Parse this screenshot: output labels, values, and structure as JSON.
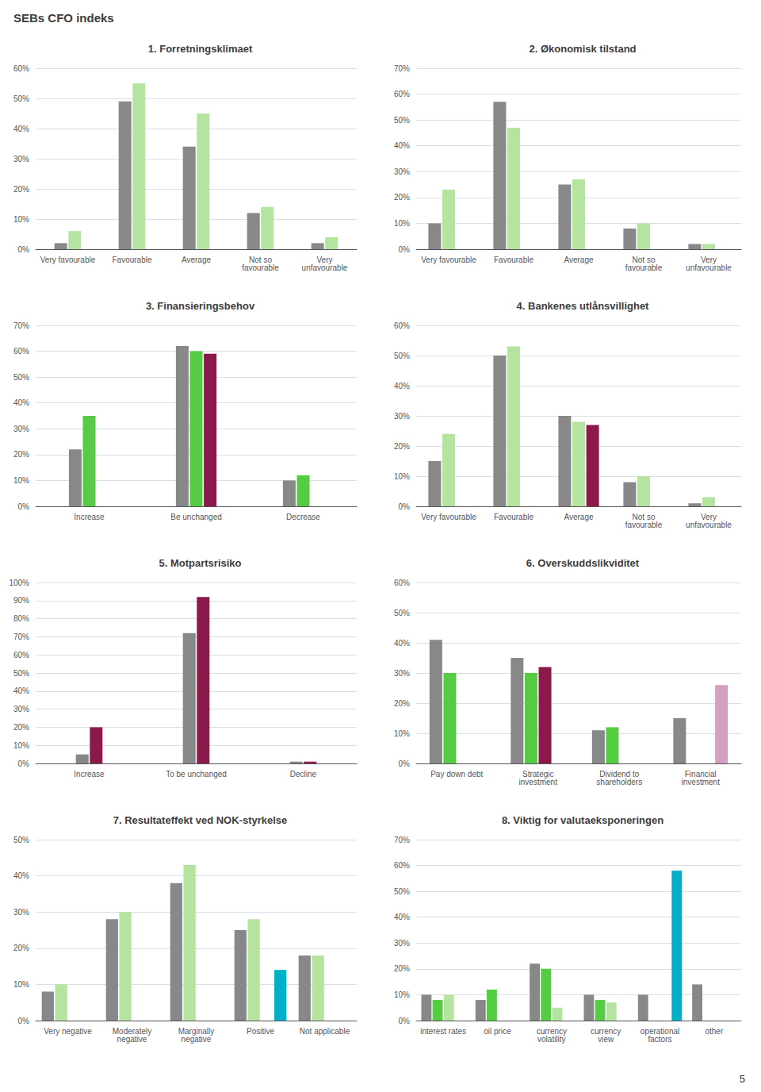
{
  "title": "SEBs CFO indeks",
  "annotations": [
    "5"
  ],
  "chart_data": [
    {
      "type": "bar",
      "title": "1. Forretningsklimaet",
      "categories": [
        "Very favourable",
        "Favourable",
        "Average",
        "Not so\nfavourable",
        "Very\nunfavourable"
      ],
      "series": [
        {
          "color": "#888888",
          "values": [
            2,
            49,
            34,
            12,
            2
          ]
        },
        {
          "color": "#b5e4a0",
          "values": [
            6,
            55,
            45,
            14,
            4
          ]
        }
      ],
      "ylim": [
        0,
        60
      ],
      "yticks": [
        {
          "value": 0,
          "label": "0%"
        },
        {
          "value": 10,
          "label": "10%"
        },
        {
          "value": 20,
          "label": "20%"
        },
        {
          "value": 30,
          "label": "30%"
        },
        {
          "value": 40,
          "label": "40%"
        },
        {
          "value": 50,
          "label": "50%"
        },
        {
          "value": 60,
          "label": "60%"
        }
      ],
      "grid": true
    },
    {
      "type": "bar",
      "title": "2. Økonomisk tilstand",
      "categories": [
        "Very favourable",
        "Favourable",
        "Average",
        "Not so\nfavourable",
        "Very\nunfavourable"
      ],
      "series": [
        {
          "color": "#888888",
          "values": [
            10,
            57,
            25,
            8,
            2
          ]
        },
        {
          "color": "#b5e4a0",
          "values": [
            23,
            47,
            27,
            10,
            2
          ]
        },
        {
          "color": "#8b1a4a",
          "values": [
            0,
            0,
            0,
            0,
            0
          ]
        }
      ],
      "ylim": [
        0,
        70
      ],
      "yticks": [
        {
          "value": 0,
          "label": "0%"
        },
        {
          "value": 10,
          "label": "10%"
        },
        {
          "value": 20,
          "label": "20%"
        },
        {
          "value": 30,
          "label": "30%"
        },
        {
          "value": 40,
          "label": "40%"
        },
        {
          "value": 50,
          "label": "50%"
        },
        {
          "value": 60,
          "label": "60%"
        },
        {
          "value": 70,
          "label": "70%"
        }
      ],
      "grid": true
    },
    {
      "type": "bar",
      "title": "3. Finansieringsbehov",
      "categories": [
        "Increase",
        "Be unchanged",
        "Decrease"
      ],
      "series": [
        {
          "color": "#888888",
          "values": [
            22,
            62,
            10
          ]
        },
        {
          "color": "#55cc44",
          "values": [
            35,
            60,
            12
          ]
        },
        {
          "color": "#8b1a4a",
          "values": [
            0,
            59,
            0
          ]
        }
      ],
      "ylim": [
        0,
        70
      ],
      "yticks": [
        {
          "value": 0,
          "label": "0%"
        },
        {
          "value": 10,
          "label": "10%"
        },
        {
          "value": 20,
          "label": "20%"
        },
        {
          "value": 30,
          "label": "30%"
        },
        {
          "value": 40,
          "label": "40%"
        },
        {
          "value": 50,
          "label": "50%"
        },
        {
          "value": 60,
          "label": "60%"
        },
        {
          "value": 70,
          "label": "70%"
        }
      ],
      "grid": true
    },
    {
      "type": "bar",
      "title": "4. Bankenes utlånsvillighet",
      "categories": [
        "Very favourable",
        "Favourable",
        "Average",
        "Not so\nfavourable",
        "Very\nunfavourable"
      ],
      "series": [
        {
          "color": "#888888",
          "values": [
            15,
            50,
            30,
            8,
            1
          ]
        },
        {
          "color": "#b5e4a0",
          "values": [
            24,
            53,
            28,
            10,
            3
          ]
        },
        {
          "color": "#8b1a4a",
          "values": [
            0,
            0,
            27,
            0,
            0
          ]
        }
      ],
      "ylim": [
        0,
        60
      ],
      "yticks": [
        {
          "value": 0,
          "label": "0%"
        },
        {
          "value": 10,
          "label": "10%"
        },
        {
          "value": 20,
          "label": "20%"
        },
        {
          "value": 30,
          "label": "30%"
        },
        {
          "value": 40,
          "label": "40%"
        },
        {
          "value": 50,
          "label": "50%"
        },
        {
          "value": 60,
          "label": "60%"
        }
      ],
      "grid": true
    },
    {
      "type": "bar",
      "title": "5. Motpartsrisiko",
      "categories": [
        "Increase",
        "To be unchanged",
        "Decline"
      ],
      "series": [
        {
          "color": "#888888",
          "values": [
            5,
            72,
            1
          ]
        },
        {
          "color": "#8b1a4a",
          "values": [
            20,
            92,
            1
          ]
        }
      ],
      "ylim": [
        0,
        100
      ],
      "yticks": [
        {
          "value": 0,
          "label": "0%"
        },
        {
          "value": 10,
          "label": "10%"
        },
        {
          "value": 20,
          "label": "20%"
        },
        {
          "value": 30,
          "label": "30%"
        },
        {
          "value": 40,
          "label": "40%"
        },
        {
          "value": 50,
          "label": "50%"
        },
        {
          "value": 60,
          "label": "60%"
        },
        {
          "value": 70,
          "label": "70%"
        },
        {
          "value": 80,
          "label": "80%"
        },
        {
          "value": 90,
          "label": "90%"
        },
        {
          "value": 100,
          "label": "100%"
        }
      ],
      "grid": true
    },
    {
      "type": "bar",
      "title": "6. Overskuddslikviditet",
      "categories": [
        "Pay down debt",
        "Strategic\ninvestment",
        "Dividend to\nshareholders",
        "Financial\ninvestment"
      ],
      "series": [
        {
          "color": "#888888",
          "values": [
            41,
            35,
            11,
            15
          ]
        },
        {
          "color": "#55cc44",
          "values": [
            30,
            30,
            12,
            0
          ]
        },
        {
          "color": "#8b1a4a",
          "values": [
            0,
            32,
            0,
            0
          ]
        },
        {
          "color": "#d4a0c0",
          "values": [
            0,
            0,
            0,
            26
          ]
        }
      ],
      "ylim": [
        0,
        60
      ],
      "yticks": [
        {
          "value": 0,
          "label": "0%"
        },
        {
          "value": 10,
          "label": "10%"
        },
        {
          "value": 20,
          "label": "20%"
        },
        {
          "value": 30,
          "label": "30%"
        },
        {
          "value": 40,
          "label": "40%"
        },
        {
          "value": 50,
          "label": "50%"
        },
        {
          "value": 60,
          "label": "60%"
        }
      ],
      "grid": true
    },
    {
      "type": "bar",
      "title": "7. Resultateffekt ved NOK-styrkelse",
      "categories": [
        "Very negative",
        "Moderately\nnegative",
        "Marginally\nnegative",
        "Positive",
        "Not applicable"
      ],
      "series": [
        {
          "color": "#888888",
          "values": [
            8,
            28,
            38,
            25,
            18
          ]
        },
        {
          "color": "#b5e4a0",
          "values": [
            10,
            30,
            43,
            28,
            18
          ]
        },
        {
          "color": "#8b1a4a",
          "values": [
            0,
            0,
            0,
            0,
            0
          ]
        },
        {
          "color": "#00b0c8",
          "values": [
            0,
            0,
            0,
            14,
            0
          ]
        }
      ],
      "ylim": [
        0,
        50
      ],
      "yticks": [
        {
          "value": 0,
          "label": "0%"
        },
        {
          "value": 10,
          "label": "10%"
        },
        {
          "value": 20,
          "label": "20%"
        },
        {
          "value": 30,
          "label": "30%"
        },
        {
          "value": 40,
          "label": "40%"
        },
        {
          "value": 50,
          "label": "50%"
        }
      ],
      "grid": true
    },
    {
      "type": "bar",
      "title": "8. Viktig for valutaeksponeringen",
      "categories": [
        "interest rates",
        "oil price",
        "currency\nvolatility",
        "currency\nview",
        "operational\nfactors",
        "other"
      ],
      "series": [
        {
          "color": "#888888",
          "values": [
            10,
            8,
            22,
            10,
            10,
            14
          ]
        },
        {
          "color": "#55cc44",
          "values": [
            8,
            12,
            20,
            8,
            0,
            0
          ]
        },
        {
          "color": "#b5e4a0",
          "values": [
            10,
            0,
            5,
            7,
            0,
            0
          ]
        },
        {
          "color": "#00b0c8",
          "values": [
            0,
            0,
            0,
            0,
            58,
            0
          ]
        }
      ],
      "ylim": [
        0,
        70
      ],
      "yticks": [
        {
          "value": 0,
          "label": "0%"
        },
        {
          "value": 10,
          "label": "10%"
        },
        {
          "value": 20,
          "label": "20%"
        },
        {
          "value": 30,
          "label": "30%"
        },
        {
          "value": 40,
          "label": "40%"
        },
        {
          "value": 50,
          "label": "50%"
        },
        {
          "value": 60,
          "label": "60%"
        },
        {
          "value": 70,
          "label": "70%"
        }
      ],
      "grid": true
    }
  ]
}
